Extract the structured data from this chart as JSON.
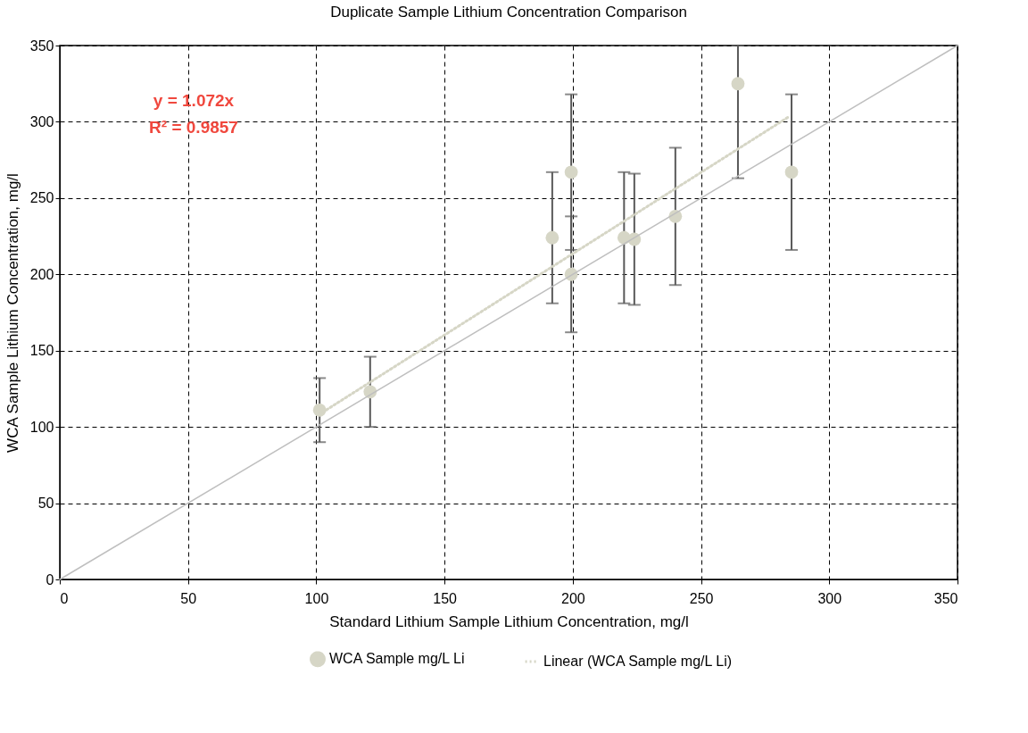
{
  "chart_data": {
    "type": "scatter",
    "title": "Duplicate Sample Lithium Concentration Comparison",
    "xlabel": "Standard Lithium Sample Lithium Concentration, mg/l",
    "ylabel": "WCA Sample Lithium Concentration, mg/l",
    "xlim": [
      0,
      350
    ],
    "xticks": [
      0,
      50,
      100,
      150,
      200,
      250,
      300,
      350
    ],
    "ylim": [
      0,
      350
    ],
    "yticks": [
      0,
      50,
      100,
      150,
      200,
      250,
      300,
      350
    ],
    "grid": true,
    "legend": "bottom",
    "annotations": [
      "y = 1.072x",
      "R² = 0.9857"
    ],
    "series": [
      {
        "name": "WCA Sample mg/L Li",
        "marker": "circle",
        "color": "#d6d6c6",
        "x": [
          101.3,
          121,
          192,
          199.4,
          199.4,
          220,
          224,
          240,
          264.4,
          285.3
        ],
        "values": [
          111,
          123,
          224,
          267,
          200,
          224,
          223,
          238,
          325,
          267
        ],
        "errors": [
          [
            90,
            132
          ],
          [
            100,
            146
          ],
          [
            181,
            267
          ],
          [
            216,
            318
          ],
          [
            162,
            238
          ],
          [
            181,
            267
          ],
          [
            180,
            266
          ],
          [
            193,
            283
          ],
          [
            263,
            350
          ],
          [
            216,
            318
          ]
        ]
      },
      {
        "type": "line",
        "color": "#bfbfbf",
        "line_style": "solid",
        "x": [
          0,
          350
        ],
        "values": [
          0,
          350
        ]
      },
      {
        "name": "Linear (WCA Sample mg/L Li)",
        "type": "line",
        "color": "#d6d6c6",
        "line_style": "dotted",
        "x": [
          101,
          284.6
        ],
        "values": [
          108,
          303.7
        ]
      }
    ]
  }
}
